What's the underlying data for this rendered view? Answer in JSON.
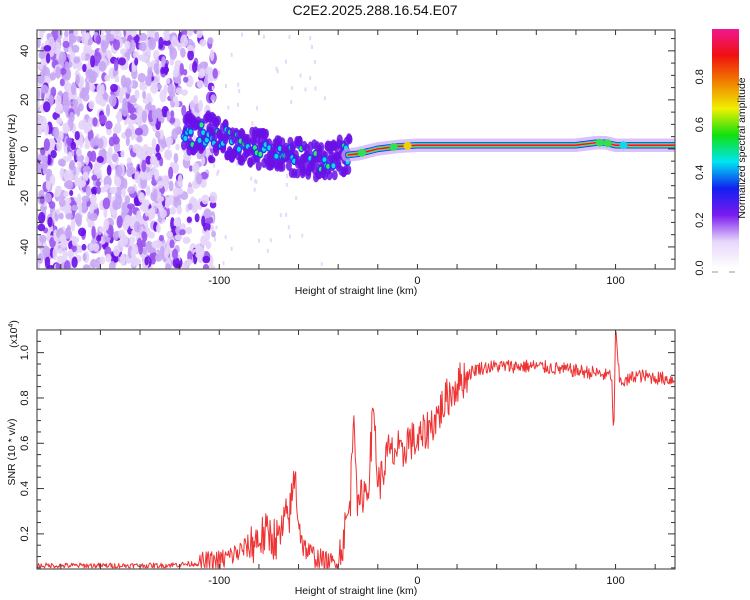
{
  "title": "C2E2.2025.288.16.54.E07",
  "chart_data": [
    {
      "type": "heatmap",
      "name": "spectrogram",
      "xlabel": "Height of straight line (km)",
      "ylabel": "Frequency (Hz)",
      "xlim": [
        -192,
        130
      ],
      "ylim": [
        -49,
        48.5
      ],
      "xticks": [
        -100,
        0,
        100
      ],
      "xticks_minor_step": 20,
      "yticks": [
        -40,
        -20,
        0,
        20,
        40
      ],
      "yticks_minor_step": 5,
      "colorbar": {
        "label": "Normalized spectral amplitude",
        "range": [
          0.0,
          1.0
        ],
        "ticks": [
          "0.0",
          "0.2",
          "0.4",
          "0.6",
          "0.8"
        ],
        "colors": [
          "#ffffff",
          "#e6d6fa",
          "#7a1bf0",
          "#1020f0",
          "#00e5f0",
          "#10e010",
          "#f0f000",
          "#f08000",
          "#f01010",
          "#f01890"
        ]
      },
      "ridge": {
        "description": "Frequency track of signal vs height",
        "x": [
          -192,
          -140,
          -115,
          -105,
          -95,
          -85,
          -75,
          -65,
          -55,
          -50,
          -45,
          -40,
          -30,
          -20,
          -10,
          0,
          20,
          40,
          60,
          80,
          90,
          95,
          100,
          105,
          110,
          130
        ],
        "y": [
          0,
          0,
          6,
          7,
          3,
          1,
          -1,
          -3,
          -4,
          -6,
          -5,
          -3,
          -2,
          0,
          1,
          1.5,
          1.5,
          1.5,
          1.5,
          1.5,
          2.5,
          2.5,
          1.5,
          1.5,
          1.5,
          1.5
        ],
        "amplitude": [
          0.12,
          0.12,
          0.2,
          0.35,
          0.35,
          0.35,
          0.35,
          0.35,
          0.4,
          0.4,
          0.45,
          0.6,
          0.8,
          0.85,
          0.9,
          0.95,
          0.95,
          0.95,
          0.95,
          0.9,
          0.55,
          0.55,
          0.9,
          0.5,
          0.95,
          0.95
        ]
      },
      "noise_region_x": [
        -192,
        -110
      ]
    },
    {
      "type": "line",
      "name": "snr",
      "xlabel": "Height of straight line (km)",
      "ylabel": "SNR (10 * v/v)",
      "y_multiplier": "(x10^4)",
      "xlim": [
        -192,
        130
      ],
      "ylim": [
        0.045,
        1.1
      ],
      "xticks": [
        -100,
        0,
        100
      ],
      "xticks_minor_step": 20,
      "yticks": [
        0.2,
        0.4,
        0.6,
        0.8,
        1.0
      ],
      "yticks_minor_step": 0.05,
      "color": "#ee3333",
      "x": [
        -192,
        -170,
        -150,
        -130,
        -120,
        -110,
        -100,
        -95,
        -90,
        -85,
        -80,
        -75,
        -70,
        -66,
        -64,
        -62,
        -60,
        -58,
        -55,
        -50,
        -45,
        -42,
        -40,
        -38,
        -36,
        -34,
        -32,
        -30,
        -28,
        -25,
        -22,
        -20,
        -18,
        -15,
        -12,
        -10,
        -8,
        -5,
        0,
        5,
        10,
        15,
        20,
        25,
        30,
        40,
        50,
        60,
        70,
        80,
        90,
        95,
        98,
        99,
        100,
        102,
        105,
        110,
        120,
        130
      ],
      "y": [
        0.06,
        0.06,
        0.06,
        0.06,
        0.065,
        0.07,
        0.08,
        0.1,
        0.12,
        0.15,
        0.18,
        0.2,
        0.17,
        0.27,
        0.3,
        0.47,
        0.28,
        0.15,
        0.12,
        0.09,
        0.07,
        0.07,
        0.09,
        0.15,
        0.25,
        0.32,
        0.78,
        0.28,
        0.38,
        0.4,
        0.77,
        0.42,
        0.45,
        0.56,
        0.55,
        0.58,
        0.52,
        0.62,
        0.6,
        0.66,
        0.72,
        0.8,
        0.86,
        0.9,
        0.93,
        0.94,
        0.94,
        0.94,
        0.93,
        0.92,
        0.91,
        0.9,
        0.9,
        0.62,
        1.1,
        0.88,
        0.87,
        0.9,
        0.89,
        0.88
      ]
    }
  ]
}
